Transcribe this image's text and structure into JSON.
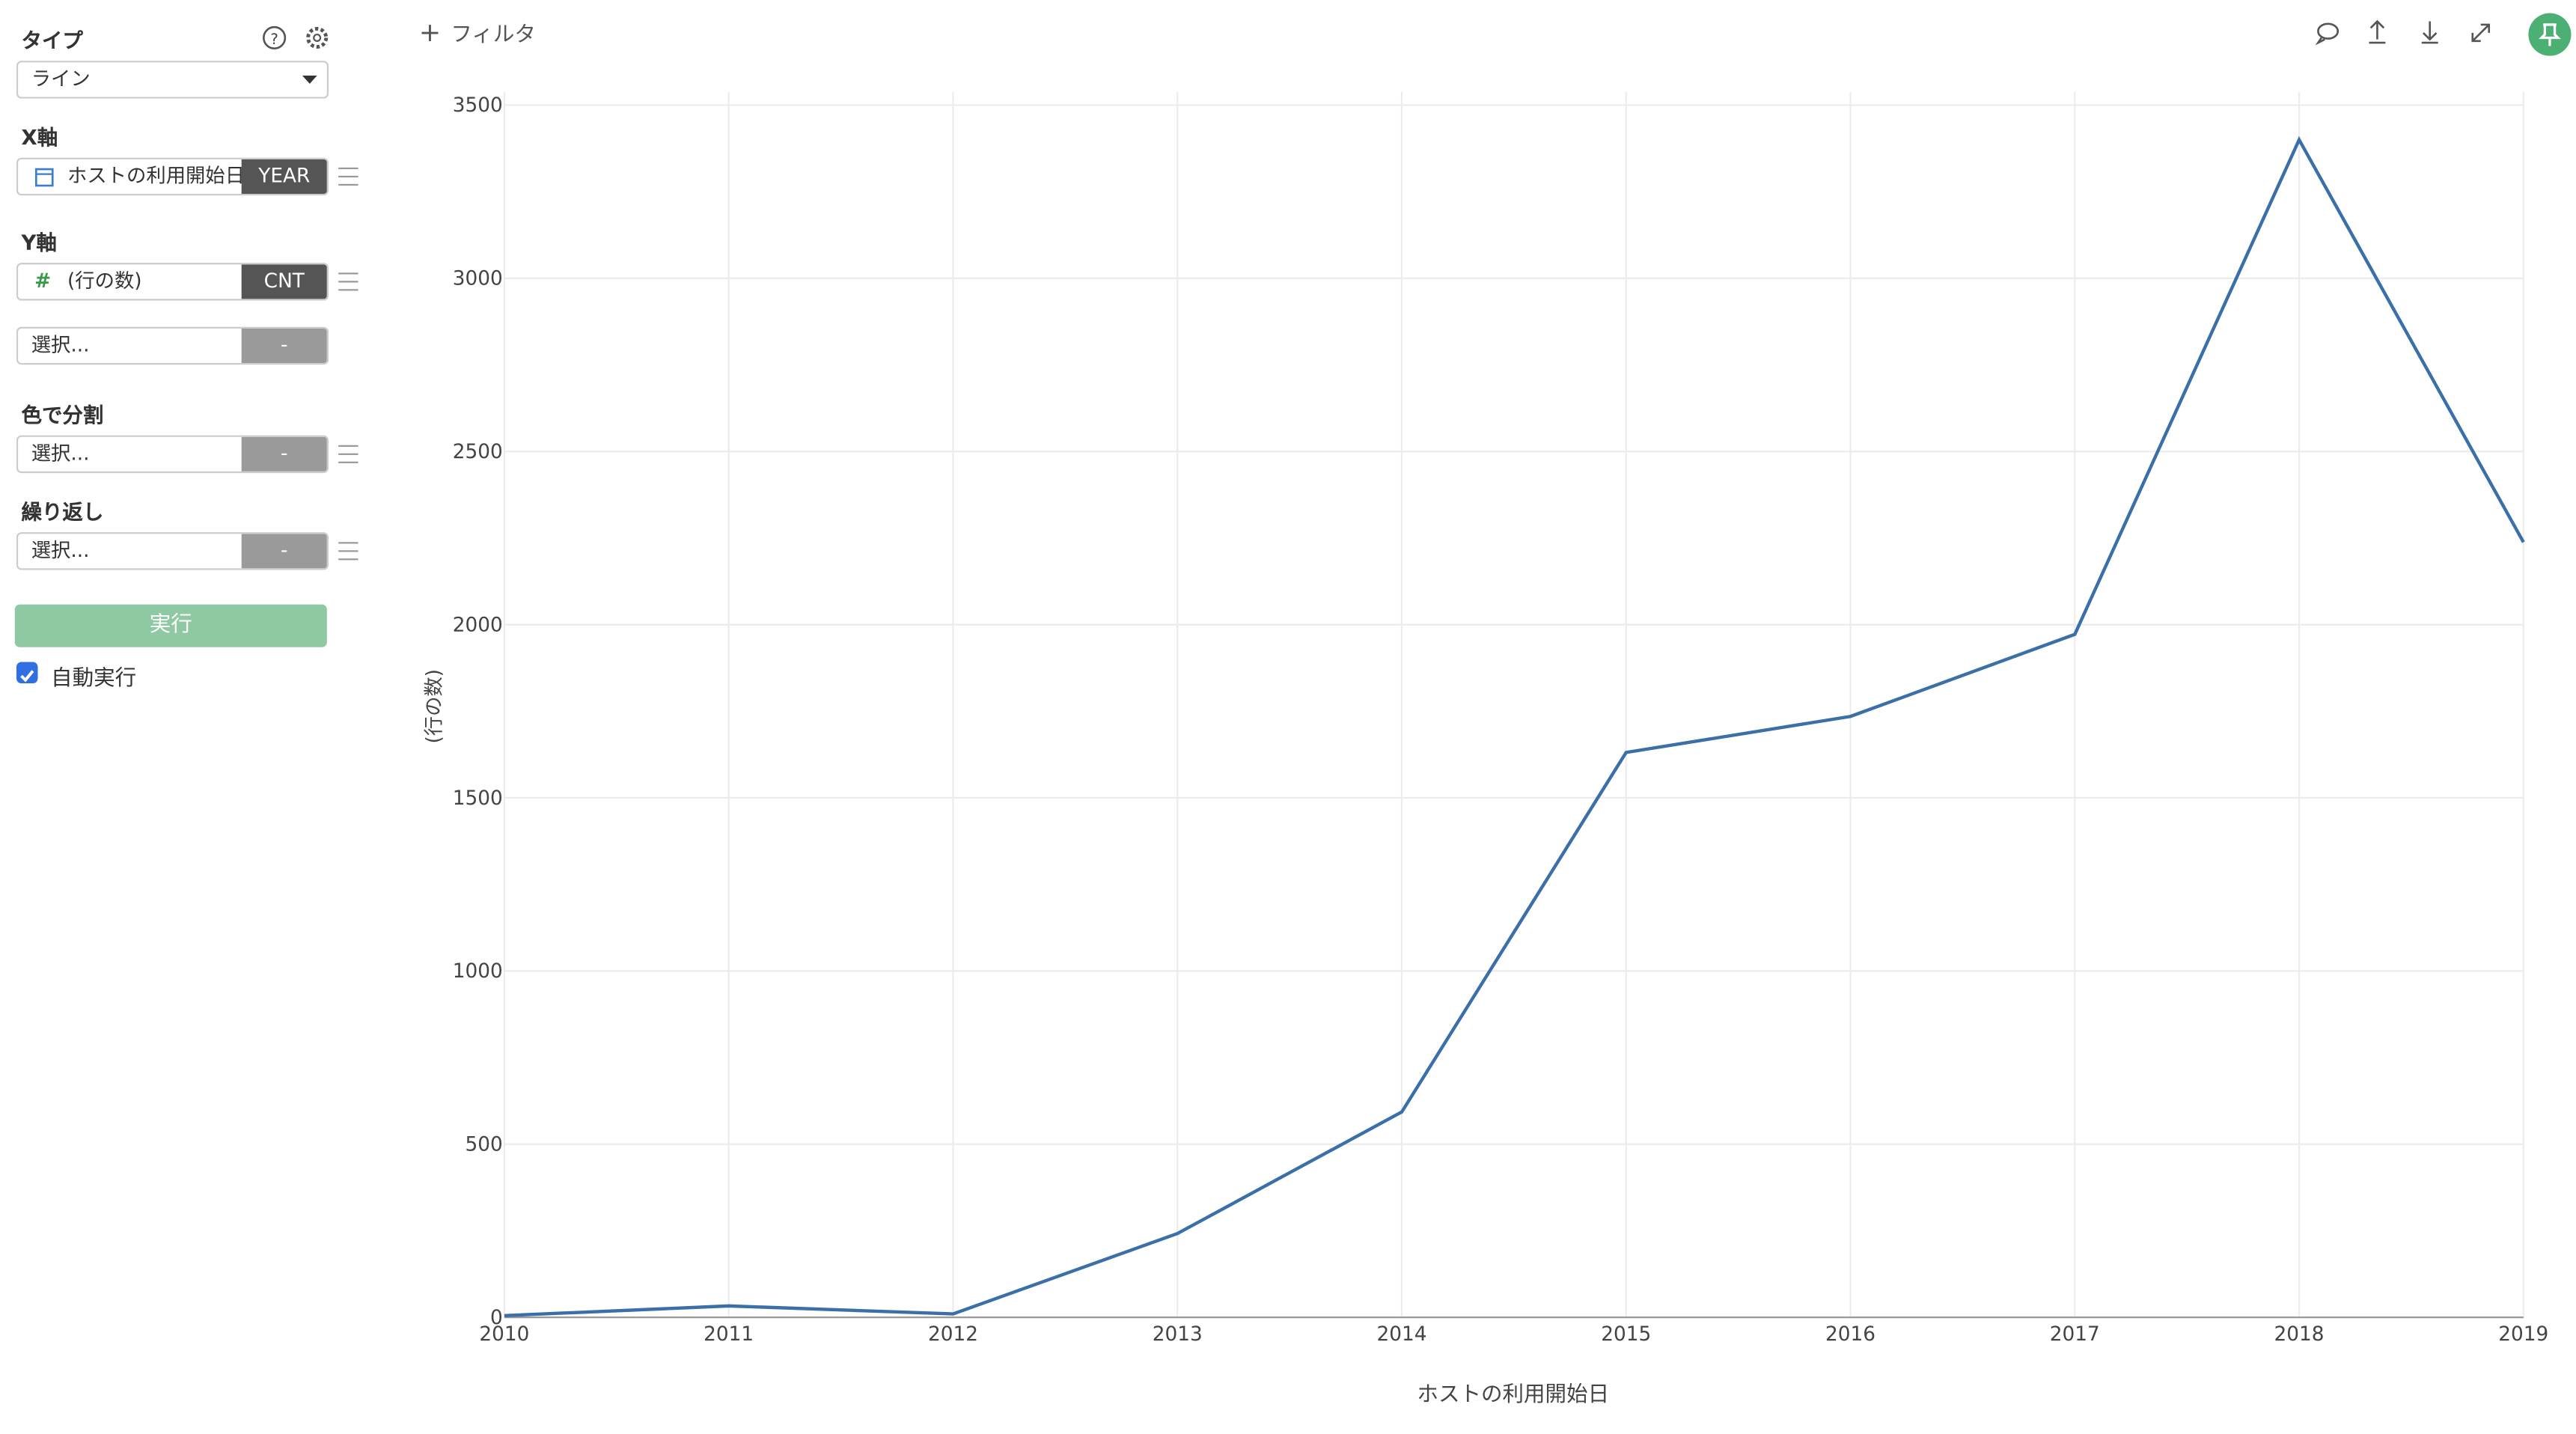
{
  "sidebar": {
    "type_label": "タイプ",
    "type_value": "ライン",
    "x_axis_label": "X軸",
    "x_field": "ホストの利用開始日",
    "x_agg": "YEAR",
    "y_axis_label": "Y軸",
    "y_field": "(行の数)",
    "y_agg": "CNT",
    "y2_field": "選択...",
    "y2_agg": "-",
    "color_label": "色で分割",
    "color_field": "選択...",
    "color_agg": "-",
    "repeat_label": "繰り返し",
    "repeat_field": "選択...",
    "repeat_agg": "-",
    "run_button": "実行",
    "auto_run": "自動実行"
  },
  "toolbar": {
    "filter": "フィルタ"
  },
  "chart_data": {
    "type": "line",
    "x_label": "ホストの利用開始日",
    "y_label": "(行の数)",
    "x": [
      2010,
      2011,
      2012,
      2013,
      2014,
      2015,
      2016,
      2017,
      2018,
      2019
    ],
    "values": [
      5,
      33,
      10,
      242,
      593,
      1631,
      1735,
      1972,
      3400,
      2238
    ],
    "color": "#3a6fa8",
    "xlim": [
      2010,
      2019
    ],
    "xticks": [
      2010,
      2011,
      2012,
      2013,
      2014,
      2015,
      2016,
      2017,
      2018,
      2019
    ],
    "ylim": [
      0,
      3500
    ],
    "yticks": [
      0,
      500,
      1000,
      1500,
      2000,
      2500,
      3000,
      3500
    ],
    "grid": true
  }
}
